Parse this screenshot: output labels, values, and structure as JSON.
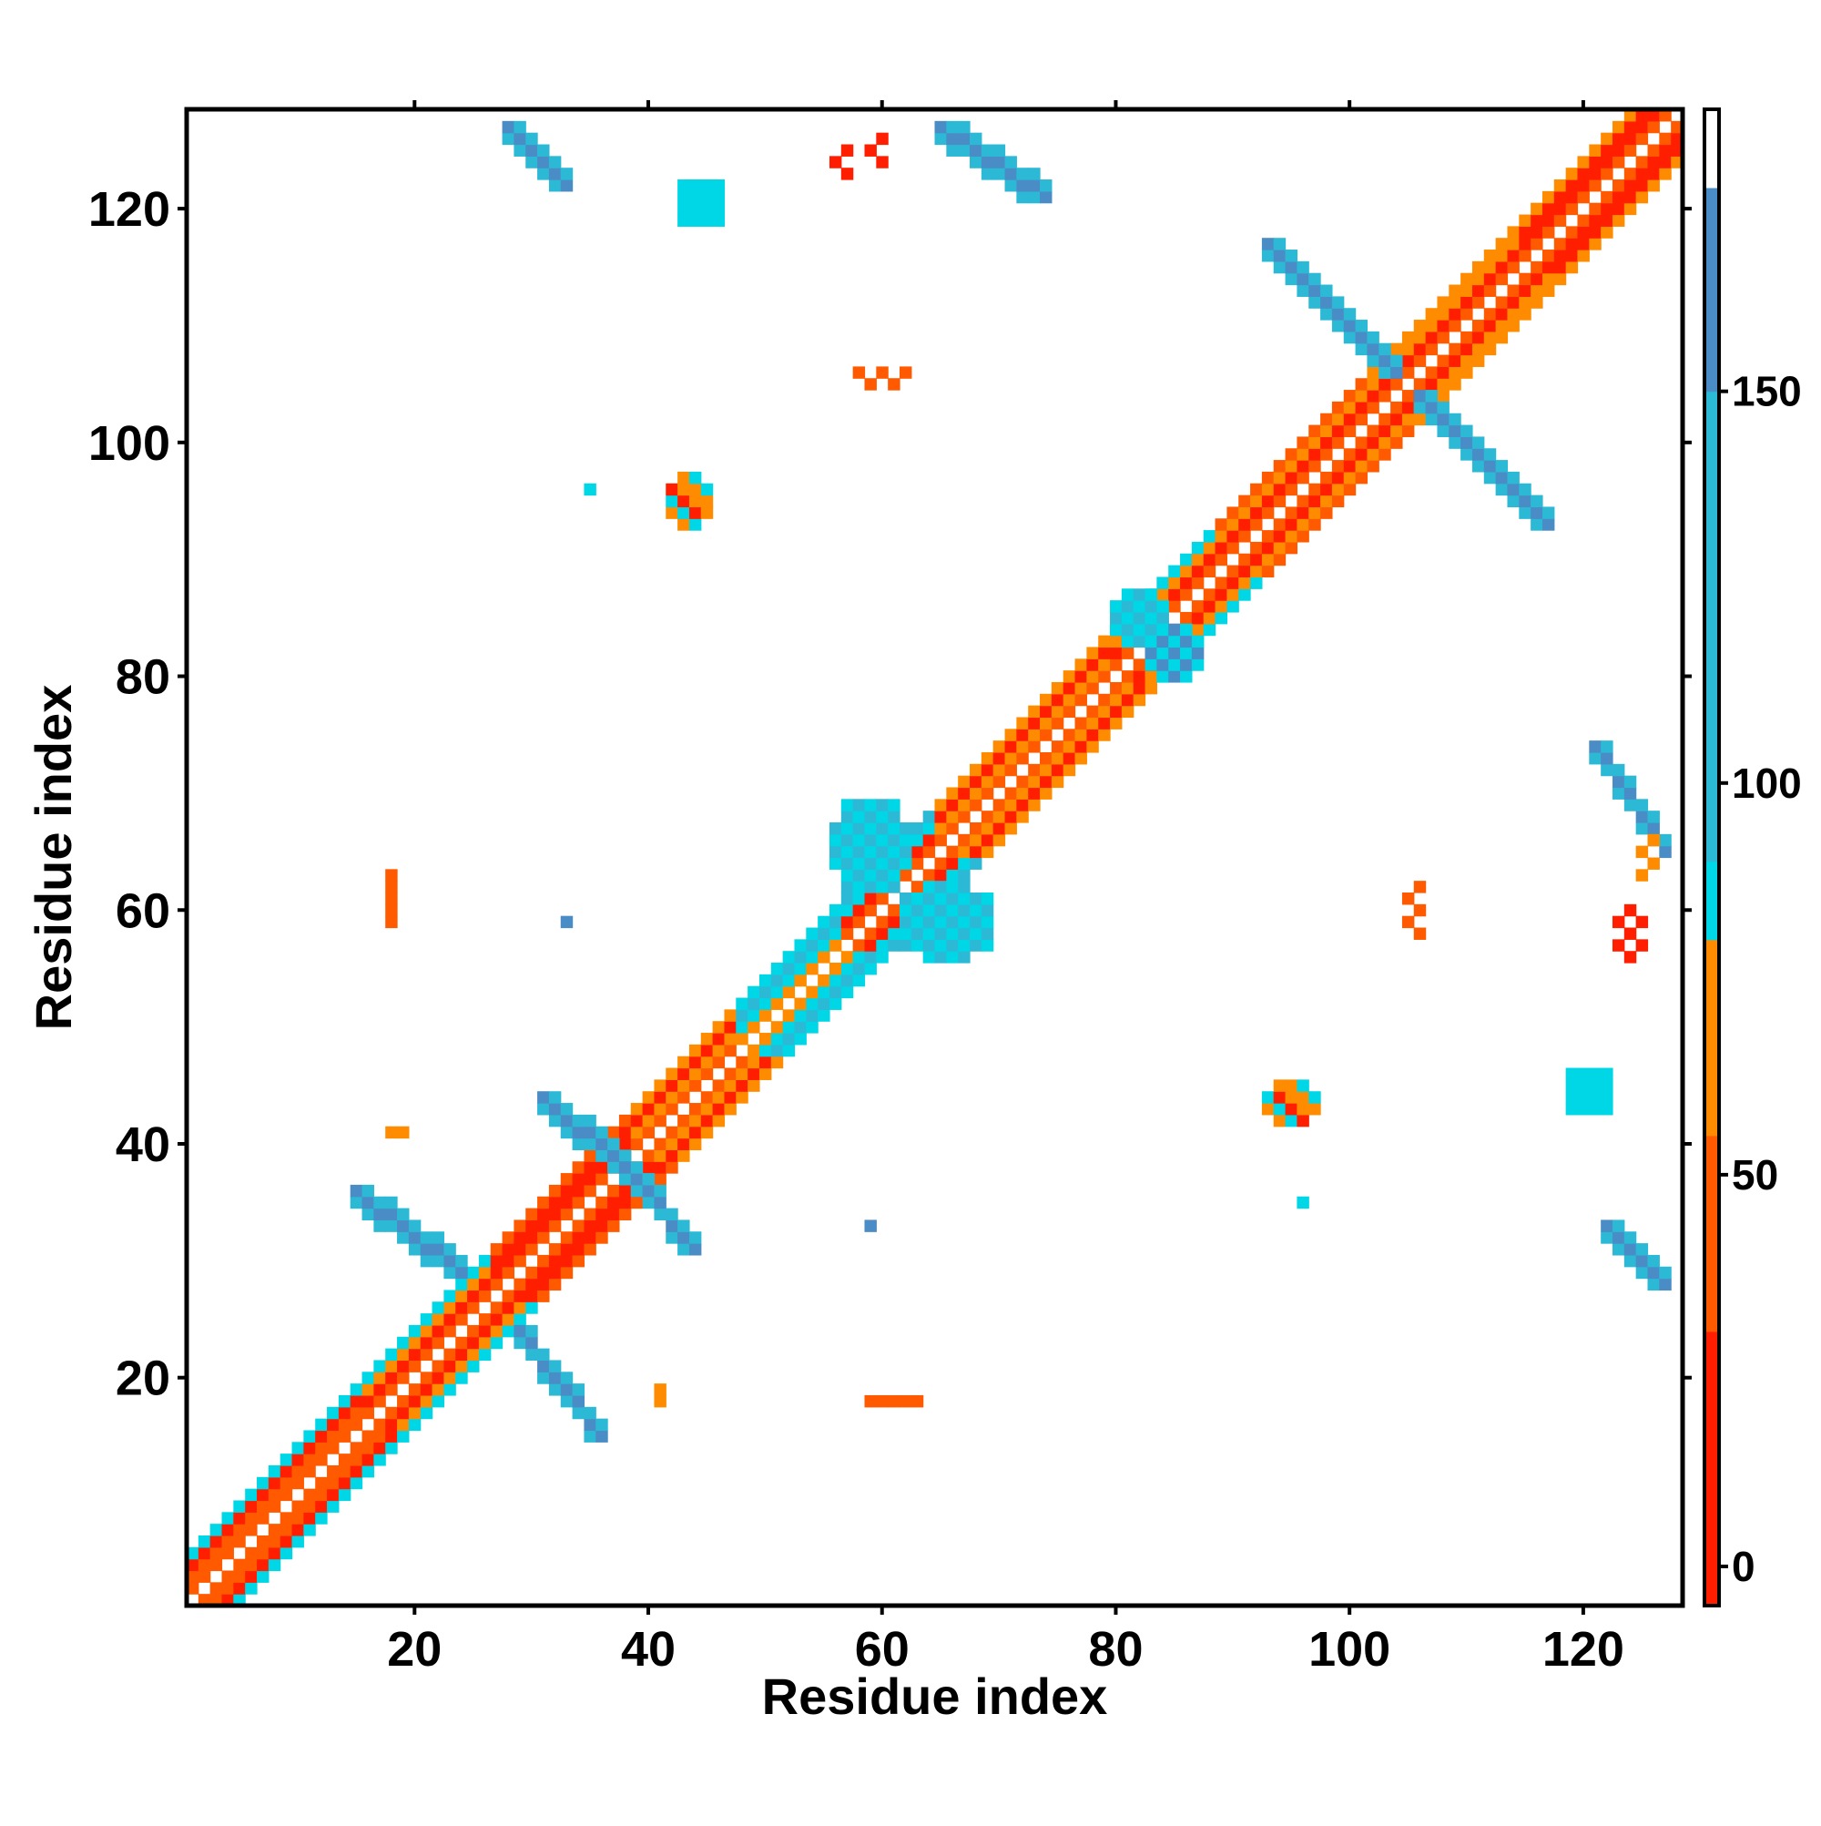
{
  "chart_data": {
    "type": "heatmap",
    "title": "",
    "xlabel": "Residue index",
    "ylabel": "Residue index",
    "xlim": [
      0.5,
      128.5
    ],
    "ylim": [
      0.5,
      128.5
    ],
    "x_ticks": [
      20,
      40,
      60,
      80,
      100,
      120
    ],
    "y_ticks": [
      20,
      40,
      60,
      80,
      100,
      120
    ],
    "colorbar": {
      "range": [
        -5,
        186
      ],
      "ticks": [
        0,
        50,
        100,
        150
      ],
      "segments": [
        {
          "from": -5,
          "to": 30,
          "color": "#ff1f00"
        },
        {
          "from": 30,
          "to": 55,
          "color": "#ff5a00"
        },
        {
          "from": 55,
          "to": 80,
          "color": "#ff8c00"
        },
        {
          "from": 80,
          "to": 90,
          "color": "#00d7e6"
        },
        {
          "from": 90,
          "to": 150,
          "color": "#2cb9d6"
        },
        {
          "from": 150,
          "to": 176,
          "color": "#4a8cc6"
        },
        {
          "from": 176,
          "to": 186,
          "color": "#ffffff"
        }
      ]
    },
    "palette": {
      "red": "#ff1f00",
      "orange_red": "#ff5a00",
      "orange": "#ff8c00",
      "cyan": "#00d7e6",
      "sky_blue": "#2cb9d6",
      "steel_blue": "#4a8cc6",
      "white": "#ffffff"
    },
    "diagonal_band": {
      "from_residue": 1,
      "to_residue": 128,
      "offsets_by_segment": [
        {
          "start": 1,
          "end": 15,
          "offset1": "orange_red",
          "offset2": "orange_red",
          "offset3": "red",
          "offset4": "cyan"
        },
        {
          "start": 16,
          "end": 26,
          "offset1": "orange_red",
          "offset2": "red",
          "offset3": "orange",
          "offset4": "cyan"
        },
        {
          "start": 27,
          "end": 38,
          "offset1": "orange_red",
          "offset2": "red",
          "offset3": "red",
          "offset4": "orange_red"
        },
        {
          "start": 39,
          "end": 47,
          "offset1": "orange_red",
          "offset2": "orange",
          "offset3": "red",
          "offset4": "orange"
        },
        {
          "start": 48,
          "end": 56,
          "offset1": "orange",
          "offset2": "cyan",
          "offset3": "sky_blue",
          "offset4": "cyan"
        },
        {
          "start": 57,
          "end": 64,
          "offset1": "orange_red",
          "offset2": "red",
          "offset3": "cyan",
          "offset4": "sky_blue"
        },
        {
          "start": 65,
          "end": 79,
          "offset1": "orange_red",
          "offset2": "orange",
          "offset3": "red",
          "offset4": "orange"
        },
        {
          "start": 80,
          "end": 88,
          "offset1": "orange_red",
          "offset2": "red",
          "offset3": "orange",
          "offset4": "cyan"
        },
        {
          "start": 89,
          "end": 101,
          "offset1": "orange_red",
          "offset2": "red",
          "offset3": "orange",
          "offset4": "orange_red"
        },
        {
          "start": 102,
          "end": 114,
          "offset1": "orange_red",
          "offset2": "red",
          "offset3": "orange",
          "offset4": "orange"
        },
        {
          "start": 115,
          "end": 128,
          "offset1": "orange_red",
          "offset2": "red",
          "offset3": "red",
          "offset4": "orange"
        }
      ]
    },
    "contact_blocks": [
      {
        "x": [
          15,
          24
        ],
        "y": [
          29,
          36
        ],
        "color": "steel_blue",
        "shape": "anti-diagonal"
      },
      {
        "x": [
          29,
          36
        ],
        "y": [
          15,
          24
        ],
        "color": "steel_blue",
        "shape": "anti-diagonal"
      },
      {
        "x": [
          31,
          38
        ],
        "y": [
          38,
          44
        ],
        "color": "steel_blue",
        "shape": "anti-diagonal"
      },
      {
        "x": [
          38,
          44
        ],
        "y": [
          31,
          38
        ],
        "color": "steel_blue",
        "shape": "anti-diagonal"
      },
      {
        "x": [
          56,
          62
        ],
        "y": [
          62,
          69
        ],
        "color": "sky_blue",
        "shape": "cluster"
      },
      {
        "x": [
          62,
          69
        ],
        "y": [
          56,
          62
        ],
        "color": "sky_blue",
        "shape": "cluster"
      },
      {
        "x": [
          80,
          84
        ],
        "y": [
          83,
          87
        ],
        "color": "sky_blue",
        "shape": "cluster"
      },
      {
        "x": [
          83,
          87
        ],
        "y": [
          80,
          84
        ],
        "color": "steel_blue",
        "shape": "cluster"
      },
      {
        "x": [
          93,
          104
        ],
        "y": [
          106,
          117
        ],
        "color": "steel_blue",
        "shape": "anti-diagonal"
      },
      {
        "x": [
          106,
          117
        ],
        "y": [
          93,
          104
        ],
        "color": "steel_blue",
        "shape": "anti-diagonal"
      },
      {
        "x": [
          28,
          33
        ],
        "y": [
          122,
          127
        ],
        "color": "steel_blue",
        "shape": "anti-diagonal"
      },
      {
        "x": [
          122,
          127
        ],
        "y": [
          28,
          33
        ],
        "color": "steel_blue",
        "shape": "anti-diagonal"
      },
      {
        "x": [
          65,
          74
        ],
        "y": [
          121,
          127
        ],
        "color": "steel_blue",
        "shape": "anti-diagonal"
      },
      {
        "x": [
          121,
          127
        ],
        "y": [
          65,
          74
        ],
        "color": "steel_blue",
        "shape": "anti-diagonal"
      },
      {
        "x": [
          43,
          46
        ],
        "y": [
          119,
          122
        ],
        "color": "cyan",
        "shape": "blob"
      },
      {
        "x": [
          119,
          122
        ],
        "y": [
          43,
          46
        ],
        "color": "cyan",
        "shape": "blob"
      },
      {
        "x": [
          42,
          45
        ],
        "y": [
          93,
          97
        ],
        "color": "orange",
        "shape": "blob"
      },
      {
        "x": [
          93,
          97
        ],
        "y": [
          42,
          45
        ],
        "color": "orange",
        "shape": "blob"
      },
      {
        "x": [
          56,
          57
        ],
        "y": [
          123,
          125
        ],
        "color": "red",
        "shape": "cells"
      },
      {
        "x": [
          59,
          60
        ],
        "y": [
          124,
          126
        ],
        "color": "red",
        "shape": "cells"
      },
      {
        "x": [
          58,
          62
        ],
        "y": [
          105,
          106
        ],
        "color": "orange_red",
        "shape": "cells"
      },
      {
        "x": [
          18,
          18
        ],
        "y": [
          59,
          63
        ],
        "color": "orange_red",
        "shape": "cells"
      },
      {
        "x": [
          18,
          19
        ],
        "y": [
          41,
          41
        ],
        "color": "orange",
        "shape": "cells"
      },
      {
        "x": [
          33,
          33
        ],
        "y": [
          59,
          59
        ],
        "color": "steel_blue",
        "shape": "cells"
      },
      {
        "x": [
          35,
          35
        ],
        "y": [
          96,
          96
        ],
        "color": "cyan",
        "shape": "cells"
      },
      {
        "x": [
          41,
          41
        ],
        "y": [
          18,
          19
        ],
        "color": "orange",
        "shape": "cells"
      },
      {
        "x": [
          59,
          63
        ],
        "y": [
          18,
          18
        ],
        "color": "orange_red",
        "shape": "cells"
      },
      {
        "x": [
          59,
          59
        ],
        "y": [
          33,
          33
        ],
        "color": "steel_blue",
        "shape": "cells"
      },
      {
        "x": [
          96,
          96
        ],
        "y": [
          35,
          35
        ],
        "color": "cyan",
        "shape": "cells"
      },
      {
        "x": [
          105,
          106
        ],
        "y": [
          58,
          62
        ],
        "color": "orange_red",
        "shape": "cells"
      },
      {
        "x": [
          123,
          125
        ],
        "y": [
          56,
          60
        ],
        "color": "red",
        "shape": "cells"
      },
      {
        "x": [
          125,
          126
        ],
        "y": [
          63,
          66
        ],
        "color": "orange",
        "shape": "cells"
      }
    ]
  }
}
